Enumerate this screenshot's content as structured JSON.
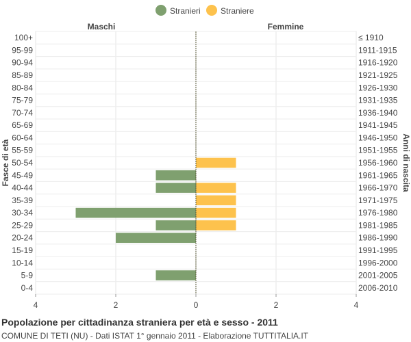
{
  "chart_data": {
    "type": "bar",
    "orientation": "horizontal",
    "title": "Popolazione per cittadinanza straniera per età e sesso - 2011",
    "subtitle": "COMUNE DI TETI (NU) - Dati ISTAT 1° gennaio 2011 - Elaborazione TUTTITALIA.IT",
    "left_header": "Maschi",
    "right_header": "Femmine",
    "ylabel_left": "Fasce di età",
    "ylabel_right": "Anni di nascita",
    "xlim": [
      -4,
      4
    ],
    "x_ticks": [
      -4,
      -2,
      0,
      2,
      4
    ],
    "x_tick_labels": [
      "4",
      "2",
      "0",
      "2",
      "4"
    ],
    "grid": true,
    "legend_position": "top-center",
    "categories": [
      "100+",
      "95-99",
      "90-94",
      "85-89",
      "80-84",
      "75-79",
      "70-74",
      "65-69",
      "60-64",
      "55-59",
      "50-54",
      "45-49",
      "40-44",
      "35-39",
      "30-34",
      "25-29",
      "20-24",
      "15-19",
      "10-14",
      "5-9",
      "0-4"
    ],
    "birth_years": [
      "≤ 1910",
      "1911-1915",
      "1916-1920",
      "1921-1925",
      "1926-1930",
      "1931-1935",
      "1936-1940",
      "1941-1945",
      "1946-1950",
      "1951-1955",
      "1956-1960",
      "1961-1965",
      "1966-1970",
      "1971-1975",
      "1976-1980",
      "1981-1985",
      "1986-1990",
      "1991-1995",
      "1996-2000",
      "2001-2005",
      "2006-2010"
    ],
    "series": [
      {
        "name": "Stranieri",
        "color": "#7fa06f",
        "values": [
          0,
          0,
          0,
          0,
          0,
          0,
          0,
          0,
          0,
          0,
          0,
          1,
          1,
          0,
          3,
          1,
          2,
          0,
          0,
          1,
          0
        ]
      },
      {
        "name": "Straniere",
        "color": "#fdc24d",
        "values": [
          0,
          0,
          0,
          0,
          0,
          0,
          0,
          0,
          0,
          0,
          1,
          0,
          1,
          1,
          1,
          1,
          0,
          0,
          0,
          0,
          0
        ]
      }
    ]
  }
}
